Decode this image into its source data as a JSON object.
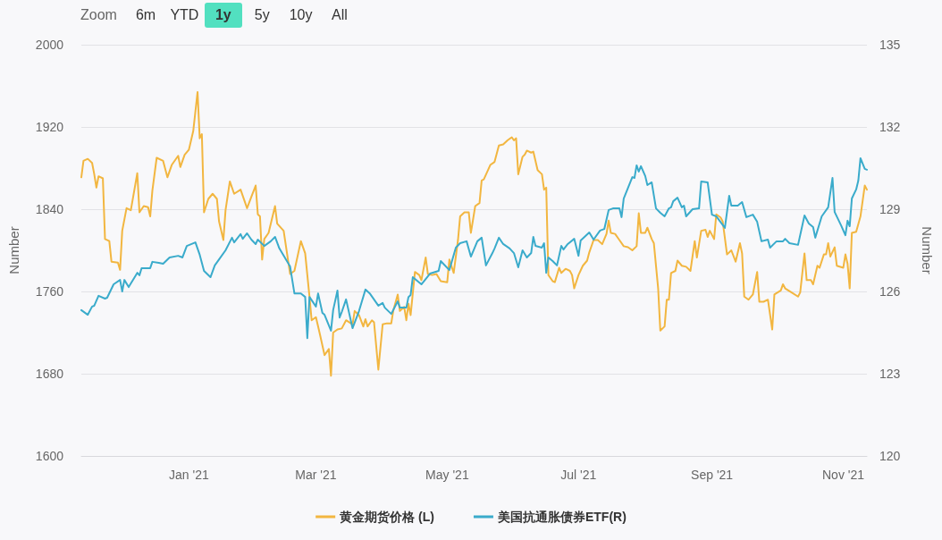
{
  "chart_data": {
    "type": "line",
    "ylabel": "Number",
    "y2label": "Number",
    "annotations": [
      "Zoom",
      "6m",
      "YTD",
      "1y",
      "5y",
      "10y",
      "All"
    ],
    "xlim": [
      "2020-11-12",
      "2021-11-12"
    ],
    "xticks": [
      {
        "value": "2021-01-01",
        "label": "Jan '21"
      },
      {
        "value": "2021-03-01",
        "label": "Mar '21"
      },
      {
        "value": "2021-05-01",
        "label": "May '21"
      },
      {
        "value": "2021-07-01",
        "label": "Jul '21"
      },
      {
        "value": "2021-09-01",
        "label": "Sep '21"
      },
      {
        "value": "2021-11-01",
        "label": "Nov '21"
      }
    ],
    "ylim": [
      1600,
      2000
    ],
    "yticks": [
      1600,
      1680,
      1760,
      1840,
      1920,
      2000
    ],
    "y2lim": [
      120,
      135
    ],
    "y2ticks": [
      120,
      123,
      126,
      129,
      132,
      135
    ],
    "grid": "y",
    "legend": "bottom",
    "series": [
      {
        "name": "黄金期货价格 (L)",
        "color": "#f2b640",
        "x": [
          "2020-11-12",
          "2020-11-13",
          "2020-11-15",
          "2020-11-17",
          "2020-11-18",
          "2020-11-19",
          "2020-11-20",
          "2020-11-22",
          "2020-11-23",
          "2020-11-25",
          "2020-11-26",
          "2020-11-29",
          "2020-11-30",
          "2020-12-01",
          "2020-12-03",
          "2020-12-05",
          "2020-12-08",
          "2020-12-09",
          "2020-12-11",
          "2020-12-13",
          "2020-12-14",
          "2020-12-15",
          "2020-12-17",
          "2020-12-20",
          "2020-12-22",
          "2020-12-24",
          "2020-12-27",
          "2020-12-28",
          "2020-12-30",
          "2021-01-01",
          "2021-01-03",
          "2021-01-05",
          "2021-01-06",
          "2021-01-07",
          "2021-01-08",
          "2021-01-10",
          "2021-01-12",
          "2021-01-14",
          "2021-01-15",
          "2021-01-17",
          "2021-01-18",
          "2021-01-20",
          "2021-01-22",
          "2021-01-25",
          "2021-01-28",
          "2021-01-30",
          "2021-02-01",
          "2021-02-02",
          "2021-02-03",
          "2021-02-04",
          "2021-02-05",
          "2021-02-07",
          "2021-02-10",
          "2021-02-11",
          "2021-02-14",
          "2021-02-17",
          "2021-02-19",
          "2021-02-22",
          "2021-02-24",
          "2021-02-26",
          "2021-02-27",
          "2021-03-01",
          "2021-03-02",
          "2021-03-03",
          "2021-03-05",
          "2021-03-07",
          "2021-03-08",
          "2021-03-09",
          "2021-03-11",
          "2021-03-13",
          "2021-03-15",
          "2021-03-18",
          "2021-03-19",
          "2021-03-21",
          "2021-03-23",
          "2021-03-24",
          "2021-03-25",
          "2021-03-27",
          "2021-03-28",
          "2021-03-30",
          "2021-04-01",
          "2021-04-03",
          "2021-04-05",
          "2021-04-06",
          "2021-04-08",
          "2021-04-09",
          "2021-04-11",
          "2021-04-12",
          "2021-04-13",
          "2021-04-14",
          "2021-04-16",
          "2021-04-18",
          "2021-04-19",
          "2021-04-21",
          "2021-04-22",
          "2021-04-24",
          "2021-04-26",
          "2021-04-28",
          "2021-05-01",
          "2021-05-02",
          "2021-05-04",
          "2021-05-06",
          "2021-05-07",
          "2021-05-09",
          "2021-05-11",
          "2021-05-12",
          "2021-05-14",
          "2021-05-16",
          "2021-05-17",
          "2021-05-18",
          "2021-05-21",
          "2021-05-23",
          "2021-05-25",
          "2021-05-27",
          "2021-05-29",
          "2021-05-31",
          "2021-06-01",
          "2021-06-02",
          "2021-06-03",
          "2021-06-05",
          "2021-06-06",
          "2021-06-07",
          "2021-06-09",
          "2021-06-10",
          "2021-06-12",
          "2021-06-14",
          "2021-06-15",
          "2021-06-16",
          "2021-06-17",
          "2021-06-19",
          "2021-06-20",
          "2021-06-22",
          "2021-06-23",
          "2021-06-25",
          "2021-06-27",
          "2021-06-28",
          "2021-06-29",
          "2021-07-01",
          "2021-07-03",
          "2021-07-05",
          "2021-07-06",
          "2021-07-08",
          "2021-07-10",
          "2021-07-12",
          "2021-07-14",
          "2021-07-15",
          "2021-07-16",
          "2021-07-18",
          "2021-07-20",
          "2021-07-22",
          "2021-07-24",
          "2021-07-26",
          "2021-07-28",
          "2021-07-29",
          "2021-07-30",
          "2021-08-01",
          "2021-08-02",
          "2021-08-04",
          "2021-08-05",
          "2021-08-07",
          "2021-08-08",
          "2021-08-10",
          "2021-08-11",
          "2021-08-12",
          "2021-08-13",
          "2021-08-15",
          "2021-08-16",
          "2021-08-18",
          "2021-08-20",
          "2021-08-22",
          "2021-08-24",
          "2021-08-25",
          "2021-08-27",
          "2021-08-29",
          "2021-08-30",
          "2021-08-31",
          "2021-09-02",
          "2021-09-03",
          "2021-09-05",
          "2021-09-06",
          "2021-09-08",
          "2021-09-10",
          "2021-09-12",
          "2021-09-14",
          "2021-09-15",
          "2021-09-16",
          "2021-09-18",
          "2021-09-20",
          "2021-09-22",
          "2021-09-23",
          "2021-09-25",
          "2021-09-27",
          "2021-09-29",
          "2021-09-30",
          "2021-10-03",
          "2021-10-04",
          "2021-10-05",
          "2021-10-08",
          "2021-10-11",
          "2021-10-12",
          "2021-10-14",
          "2021-10-15",
          "2021-10-17",
          "2021-10-18",
          "2021-10-20",
          "2021-10-21",
          "2021-10-23",
          "2021-10-24",
          "2021-10-25",
          "2021-10-26",
          "2021-10-28",
          "2021-10-29",
          "2021-11-01",
          "2021-11-02",
          "2021-11-03",
          "2021-11-04",
          "2021-11-05",
          "2021-11-07",
          "2021-11-09",
          "2021-11-11",
          "2021-11-12"
        ],
        "values": [
          1871,
          1887,
          1889,
          1885,
          1874,
          1861,
          1872,
          1870,
          1811,
          1809,
          1789,
          1788,
          1781,
          1819,
          1841,
          1839,
          1875,
          1837,
          1843,
          1842,
          1833,
          1858,
          1890,
          1887,
          1871,
          1883,
          1892,
          1881,
          1893,
          1898,
          1916,
          1954,
          1909,
          1913,
          1837,
          1850,
          1855,
          1850,
          1828,
          1810,
          1839,
          1867,
          1855,
          1859,
          1841,
          1852,
          1863,
          1835,
          1833,
          1791,
          1811,
          1817,
          1843,
          1826,
          1819,
          1777,
          1780,
          1809,
          1797,
          1755,
          1732,
          1735,
          1726,
          1717,
          1698,
          1704,
          1678,
          1720,
          1723,
          1724,
          1732,
          1728,
          1741,
          1737,
          1726,
          1733,
          1726,
          1732,
          1730,
          1684,
          1728,
          1729,
          1729,
          1742,
          1757,
          1741,
          1745,
          1732,
          1748,
          1737,
          1779,
          1776,
          1771,
          1793,
          1777,
          1776,
          1777,
          1770,
          1769,
          1791,
          1778,
          1810,
          1833,
          1837,
          1837,
          1817,
          1843,
          1846,
          1868,
          1869,
          1883,
          1886,
          1902,
          1903,
          1907,
          1910,
          1907,
          1909,
          1874,
          1891,
          1893,
          1897,
          1895,
          1896,
          1878,
          1874,
          1859,
          1861,
          1776,
          1770,
          1769,
          1783,
          1778,
          1782,
          1780,
          1776,
          1763,
          1776,
          1785,
          1790,
          1798,
          1810,
          1810,
          1806,
          1816,
          1829,
          1817,
          1816,
          1810,
          1804,
          1803,
          1800,
          1804,
          1836,
          1817,
          1817,
          1822,
          1811,
          1807,
          1763,
          1722,
          1726,
          1752,
          1752,
          1778,
          1780,
          1790,
          1785,
          1784,
          1780,
          1809,
          1793,
          1819,
          1820,
          1813,
          1819,
          1811,
          1835,
          1832,
          1828,
          1796,
          1800,
          1789,
          1807,
          1797,
          1755,
          1752,
          1757,
          1779,
          1750,
          1750,
          1752,
          1723,
          1757,
          1761,
          1767,
          1763,
          1759,
          1755,
          1759,
          1797,
          1771,
          1771,
          1767,
          1785,
          1783,
          1796,
          1796,
          1807,
          1794,
          1803,
          1785,
          1783,
          1796,
          1787,
          1763,
          1817,
          1818,
          1833,
          1863,
          1859
        ]
      },
      {
        "name": "美国抗通胀债券ETF(R)",
        "color": "#3aabcb",
        "axis": "y2",
        "x": [
          "2020-11-12",
          "2020-11-15",
          "2020-11-17",
          "2020-11-18",
          "2020-11-20",
          "2020-11-23",
          "2020-11-24",
          "2020-11-27",
          "2020-11-30",
          "2020-12-01",
          "2020-12-02",
          "2020-12-04",
          "2020-12-08",
          "2020-12-09",
          "2020-12-10",
          "2020-12-14",
          "2020-12-15",
          "2020-12-18",
          "2020-12-20",
          "2020-12-23",
          "2020-12-27",
          "2020-12-29",
          "2020-12-31",
          "2021-01-04",
          "2021-01-06",
          "2021-01-08",
          "2021-01-11",
          "2021-01-13",
          "2021-01-15",
          "2021-01-18",
          "2021-01-21",
          "2021-01-22",
          "2021-01-25",
          "2021-01-26",
          "2021-01-28",
          "2021-01-30",
          "2021-02-01",
          "2021-02-02",
          "2021-02-05",
          "2021-02-08",
          "2021-02-10",
          "2021-02-12",
          "2021-02-16",
          "2021-02-17",
          "2021-02-19",
          "2021-02-22",
          "2021-02-24",
          "2021-02-25",
          "2021-02-26",
          "2021-03-01",
          "2021-03-02",
          "2021-03-04",
          "2021-03-05",
          "2021-03-08",
          "2021-03-09",
          "2021-03-11",
          "2021-03-12",
          "2021-03-13",
          "2021-03-15",
          "2021-03-18",
          "2021-03-21",
          "2021-03-24",
          "2021-03-26",
          "2021-03-30",
          "2021-04-01",
          "2021-04-02",
          "2021-04-05",
          "2021-04-08",
          "2021-04-09",
          "2021-04-12",
          "2021-04-13",
          "2021-04-14",
          "2021-04-15",
          "2021-04-19",
          "2021-04-23",
          "2021-04-27",
          "2021-04-28",
          "2021-05-02",
          "2021-05-05",
          "2021-05-07",
          "2021-05-10",
          "2021-05-12",
          "2021-05-15",
          "2021-05-17",
          "2021-05-19",
          "2021-05-22",
          "2021-05-23",
          "2021-05-25",
          "2021-05-27",
          "2021-05-30",
          "2021-06-01",
          "2021-06-03",
          "2021-06-05",
          "2021-06-07",
          "2021-06-09",
          "2021-06-10",
          "2021-06-11",
          "2021-06-14",
          "2021-06-15",
          "2021-06-16",
          "2021-06-17",
          "2021-06-19",
          "2021-06-21",
          "2021-06-23",
          "2021-06-24",
          "2021-06-26",
          "2021-06-29",
          "2021-07-01",
          "2021-07-02",
          "2021-07-06",
          "2021-07-08",
          "2021-07-11",
          "2021-07-13",
          "2021-07-15",
          "2021-07-17",
          "2021-07-20",
          "2021-07-21",
          "2021-07-22",
          "2021-07-24",
          "2021-07-26",
          "2021-07-27",
          "2021-07-28",
          "2021-07-29",
          "2021-07-30",
          "2021-08-01",
          "2021-08-02",
          "2021-08-04",
          "2021-08-06",
          "2021-08-08",
          "2021-08-10",
          "2021-08-12",
          "2021-08-13",
          "2021-08-14",
          "2021-08-16",
          "2021-08-18",
          "2021-08-19",
          "2021-08-20",
          "2021-08-23",
          "2021-08-26",
          "2021-08-27",
          "2021-08-30",
          "2021-09-01",
          "2021-09-03",
          "2021-09-07",
          "2021-09-09",
          "2021-09-10",
          "2021-09-13",
          "2021-09-15",
          "2021-09-17",
          "2021-09-20",
          "2021-09-22",
          "2021-09-24",
          "2021-09-27",
          "2021-09-28",
          "2021-10-01",
          "2021-10-04",
          "2021-10-05",
          "2021-10-07",
          "2021-10-11",
          "2021-10-14",
          "2021-10-16",
          "2021-10-18",
          "2021-10-19",
          "2021-10-22",
          "2021-10-25",
          "2021-10-27",
          "2021-10-28",
          "2021-10-31",
          "2021-11-02",
          "2021-11-03",
          "2021-11-04",
          "2021-11-05",
          "2021-11-07",
          "2021-11-08",
          "2021-11-09",
          "2021-11-11",
          "2021-11-12"
        ],
        "values": [
          125.32,
          125.15,
          125.45,
          125.48,
          125.84,
          125.74,
          125.77,
          126.26,
          126.42,
          126.0,
          126.42,
          126.16,
          126.68,
          126.59,
          126.85,
          126.85,
          127.08,
          127.04,
          127.01,
          127.24,
          127.3,
          127.24,
          127.66,
          127.79,
          127.34,
          126.75,
          126.52,
          126.95,
          127.17,
          127.5,
          127.96,
          127.79,
          128.09,
          127.92,
          128.12,
          127.89,
          127.73,
          127.89,
          127.66,
          127.83,
          127.99,
          127.57,
          127.04,
          126.91,
          125.93,
          125.93,
          125.8,
          124.3,
          125.8,
          125.45,
          125.93,
          125.22,
          125.15,
          124.57,
          125.32,
          126.03,
          125.05,
          125.25,
          125.71,
          124.66,
          125.28,
          126.07,
          125.93,
          125.48,
          125.58,
          125.41,
          125.18,
          125.64,
          125.41,
          125.41,
          125.8,
          125.87,
          126.52,
          126.26,
          126.65,
          126.75,
          127.11,
          126.78,
          127.6,
          127.76,
          127.83,
          127.27,
          127.83,
          127.96,
          126.95,
          127.4,
          127.57,
          127.96,
          127.73,
          127.57,
          127.4,
          126.88,
          127.5,
          127.24,
          127.4,
          127.99,
          127.66,
          127.6,
          127.76,
          126.68,
          127.24,
          127.11,
          126.95,
          127.66,
          127.53,
          127.73,
          127.92,
          127.3,
          127.86,
          128.15,
          127.89,
          128.22,
          128.28,
          128.97,
          129.03,
          129.03,
          128.71,
          129.39,
          129.78,
          130.17,
          130.14,
          130.6,
          130.37,
          130.57,
          130.21,
          129.88,
          129.98,
          129.03,
          128.87,
          128.74,
          129.03,
          129.07,
          129.29,
          129.42,
          129.07,
          129.13,
          128.74,
          129.0,
          129.03,
          130.01,
          129.98,
          128.8,
          128.74,
          128.32,
          129.49,
          129.13,
          129.13,
          129.26,
          128.71,
          128.8,
          128.54,
          127.83,
          127.89,
          127.6,
          127.83,
          127.83,
          127.92,
          127.76,
          127.7,
          128.77,
          128.48,
          128.35,
          127.96,
          128.74,
          129.07,
          130.14,
          128.9,
          128.41,
          128.05,
          128.58,
          128.38,
          129.39,
          129.72,
          130.04,
          130.86,
          130.47,
          130.44
        ]
      }
    ]
  }
}
